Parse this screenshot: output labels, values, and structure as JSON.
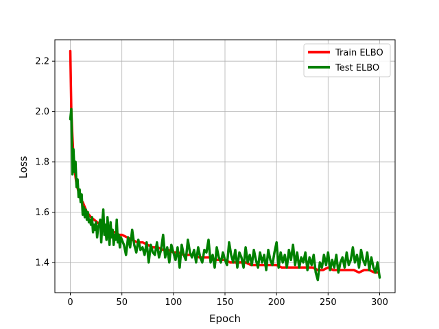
{
  "chart_data": {
    "type": "line",
    "xlabel": "Epoch",
    "ylabel": "Loss",
    "xlim": [
      -15,
      315
    ],
    "ylim": [
      1.28,
      2.285
    ],
    "xticks": [
      0,
      50,
      100,
      150,
      200,
      250,
      300
    ],
    "xtick_labels": [
      "0",
      "50",
      "100",
      "150",
      "200",
      "250",
      "300"
    ],
    "yticks": [
      1.4,
      1.6,
      1.8,
      2.0,
      2.2
    ],
    "ytick_labels": [
      "1.4",
      "1.6",
      "1.8",
      "2.0",
      "2.2"
    ],
    "grid": true,
    "legend_position": "top-right",
    "series": [
      {
        "name": "Train ELBO",
        "color": "#ff0000",
        "x": [
          0,
          1,
          2,
          3,
          4,
          5,
          6,
          8,
          10,
          12,
          14,
          16,
          18,
          20,
          23,
          26,
          29,
          32,
          35,
          38,
          41,
          44,
          47,
          50,
          55,
          60,
          65,
          70,
          75,
          80,
          85,
          90,
          95,
          100,
          105,
          110,
          115,
          120,
          125,
          130,
          135,
          140,
          145,
          150,
          155,
          160,
          165,
          170,
          175,
          180,
          185,
          190,
          195,
          200,
          205,
          210,
          215,
          220,
          225,
          230,
          235,
          240,
          245,
          250,
          255,
          260,
          265,
          270,
          275,
          280,
          285,
          290,
          295,
          298
        ],
        "y": [
          2.24,
          2.0,
          1.9,
          1.82,
          1.78,
          1.74,
          1.71,
          1.68,
          1.65,
          1.64,
          1.62,
          1.6,
          1.59,
          1.58,
          1.57,
          1.56,
          1.55,
          1.55,
          1.54,
          1.53,
          1.52,
          1.52,
          1.51,
          1.51,
          1.5,
          1.49,
          1.48,
          1.48,
          1.47,
          1.46,
          1.46,
          1.45,
          1.45,
          1.44,
          1.44,
          1.43,
          1.43,
          1.43,
          1.42,
          1.42,
          1.42,
          1.41,
          1.41,
          1.41,
          1.4,
          1.4,
          1.4,
          1.4,
          1.39,
          1.39,
          1.39,
          1.39,
          1.39,
          1.39,
          1.38,
          1.38,
          1.38,
          1.38,
          1.38,
          1.38,
          1.38,
          1.37,
          1.37,
          1.38,
          1.37,
          1.37,
          1.37,
          1.37,
          1.37,
          1.36,
          1.37,
          1.37,
          1.36,
          1.36
        ]
      },
      {
        "name": "Test ELBO",
        "color": "#008000",
        "x": [
          0,
          1,
          2,
          3,
          4,
          5,
          6,
          7,
          8,
          9,
          10,
          11,
          12,
          13,
          14,
          15,
          16,
          17,
          18,
          19,
          20,
          21,
          22,
          23,
          24,
          25,
          26,
          27,
          28,
          29,
          30,
          31,
          32,
          33,
          34,
          35,
          36,
          37,
          38,
          39,
          40,
          41,
          42,
          43,
          44,
          45,
          46,
          47,
          48,
          49,
          50,
          52,
          54,
          56,
          58,
          60,
          62,
          64,
          66,
          68,
          70,
          72,
          74,
          76,
          78,
          80,
          82,
          84,
          86,
          88,
          90,
          92,
          94,
          96,
          98,
          100,
          102,
          104,
          106,
          108,
          110,
          112,
          114,
          116,
          118,
          120,
          122,
          124,
          126,
          128,
          130,
          132,
          134,
          136,
          138,
          140,
          142,
          144,
          146,
          148,
          150,
          152,
          154,
          156,
          158,
          160,
          162,
          164,
          166,
          168,
          170,
          172,
          174,
          176,
          178,
          180,
          182,
          184,
          186,
          188,
          190,
          192,
          194,
          196,
          198,
          200,
          202,
          204,
          206,
          208,
          210,
          212,
          214,
          216,
          218,
          220,
          222,
          224,
          226,
          228,
          230,
          232,
          234,
          236,
          238,
          240,
          242,
          244,
          246,
          248,
          250,
          252,
          254,
          256,
          258,
          260,
          262,
          264,
          266,
          268,
          270,
          272,
          274,
          276,
          278,
          280,
          282,
          284,
          286,
          288,
          290,
          292,
          294,
          296,
          298,
          300
        ],
        "y": [
          1.97,
          2.01,
          1.75,
          1.85,
          1.76,
          1.8,
          1.7,
          1.73,
          1.66,
          1.69,
          1.64,
          1.67,
          1.59,
          1.62,
          1.58,
          1.61,
          1.57,
          1.6,
          1.56,
          1.57,
          1.55,
          1.58,
          1.52,
          1.55,
          1.53,
          1.56,
          1.5,
          1.54,
          1.55,
          1.57,
          1.48,
          1.56,
          1.61,
          1.51,
          1.55,
          1.49,
          1.58,
          1.52,
          1.47,
          1.56,
          1.5,
          1.53,
          1.47,
          1.51,
          1.49,
          1.57,
          1.48,
          1.51,
          1.46,
          1.5,
          1.49,
          1.47,
          1.43,
          1.5,
          1.46,
          1.53,
          1.47,
          1.44,
          1.49,
          1.45,
          1.46,
          1.43,
          1.48,
          1.4,
          1.47,
          1.44,
          1.43,
          1.48,
          1.42,
          1.45,
          1.51,
          1.42,
          1.46,
          1.4,
          1.47,
          1.44,
          1.41,
          1.46,
          1.38,
          1.47,
          1.43,
          1.41,
          1.49,
          1.44,
          1.42,
          1.45,
          1.4,
          1.46,
          1.42,
          1.4,
          1.45,
          1.44,
          1.49,
          1.4,
          1.43,
          1.38,
          1.46,
          1.42,
          1.4,
          1.44,
          1.41,
          1.39,
          1.48,
          1.43,
          1.4,
          1.45,
          1.38,
          1.44,
          1.42,
          1.38,
          1.46,
          1.4,
          1.43,
          1.39,
          1.45,
          1.41,
          1.38,
          1.44,
          1.4,
          1.43,
          1.37,
          1.45,
          1.41,
          1.39,
          1.44,
          1.48,
          1.38,
          1.44,
          1.4,
          1.43,
          1.38,
          1.45,
          1.41,
          1.47,
          1.39,
          1.44,
          1.38,
          1.42,
          1.4,
          1.44,
          1.37,
          1.42,
          1.39,
          1.43,
          1.36,
          1.33,
          1.4,
          1.38,
          1.43,
          1.39,
          1.44,
          1.37,
          1.41,
          1.38,
          1.43,
          1.36,
          1.4,
          1.42,
          1.38,
          1.44,
          1.39,
          1.41,
          1.46,
          1.4,
          1.43,
          1.38,
          1.45,
          1.41,
          1.39,
          1.44,
          1.37,
          1.42,
          1.38,
          1.36,
          1.4,
          1.34
        ]
      }
    ]
  }
}
